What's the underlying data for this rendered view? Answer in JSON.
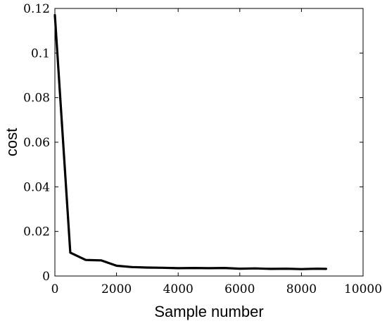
{
  "chart_data": {
    "type": "line",
    "title": "",
    "xlabel": "Sample number",
    "ylabel": "cost",
    "xlim": [
      0,
      10000
    ],
    "ylim": [
      0,
      0.12
    ],
    "x_ticks": [
      0,
      2000,
      4000,
      6000,
      8000,
      10000
    ],
    "x_tick_labels": [
      "0",
      "2000",
      "4000",
      "6000",
      "8000",
      "10000"
    ],
    "y_ticks": [
      0,
      0.02,
      0.04,
      0.06,
      0.08,
      0.1,
      0.12
    ],
    "y_tick_labels": [
      "0",
      "0.02",
      "0.04",
      "0.06",
      "0.08",
      "0.1",
      "0.12"
    ],
    "grid": false,
    "legend": "none",
    "series": [
      {
        "color": "#000000",
        "x": [
          0,
          500,
          1000,
          1500,
          2000,
          2500,
          3000,
          3500,
          4000,
          4500,
          5000,
          5500,
          6000,
          6500,
          7000,
          7500,
          8000,
          8500,
          8800
        ],
        "y": [
          0.117,
          0.0105,
          0.0072,
          0.007,
          0.0046,
          0.004,
          0.0038,
          0.0037,
          0.0035,
          0.0036,
          0.0035,
          0.0036,
          0.0033,
          0.0034,
          0.0032,
          0.0033,
          0.0031,
          0.0033,
          0.0032
        ]
      }
    ]
  }
}
